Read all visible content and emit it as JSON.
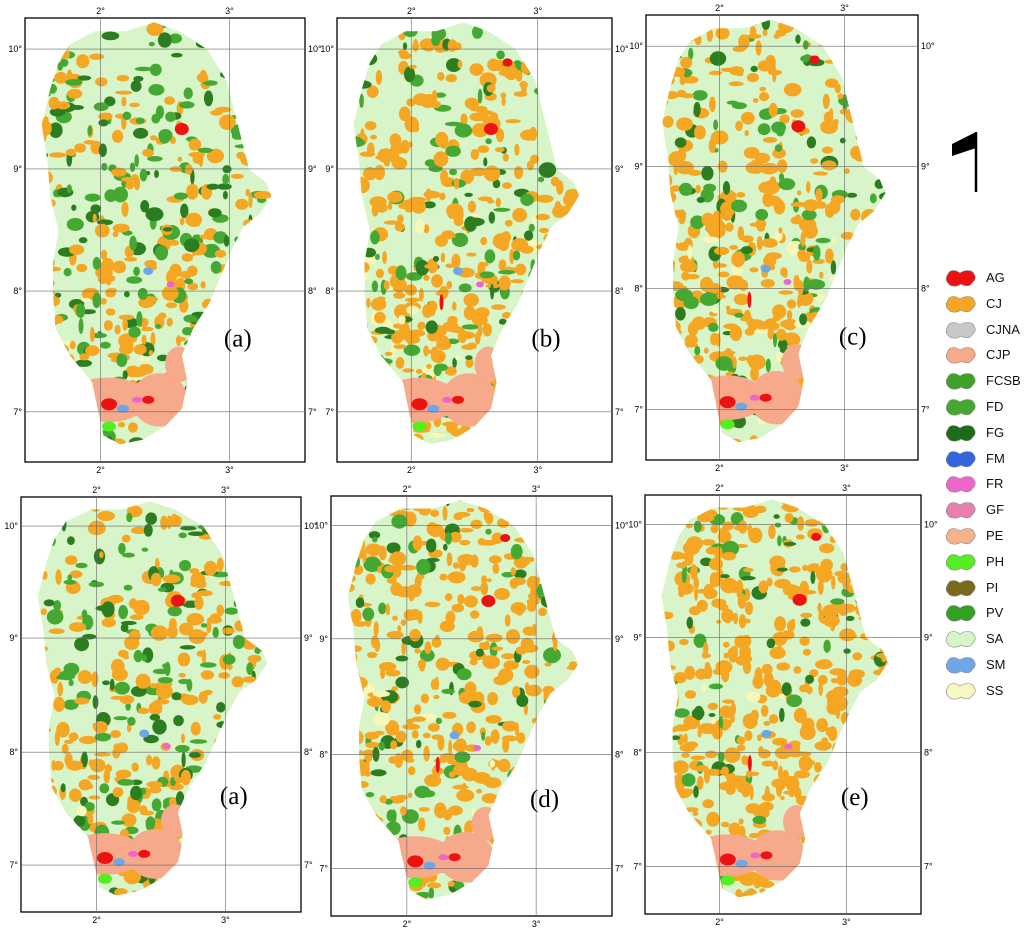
{
  "panels": [
    {
      "id": "top-1",
      "label": "(a)",
      "lat_ticks": [
        "10°",
        "9°",
        "8°",
        "7°"
      ],
      "lon_ticks": [
        "2°",
        "3°"
      ]
    },
    {
      "id": "top-2",
      "label": "(b)",
      "lat_ticks": [
        "10°",
        "9°",
        "8°",
        "7°"
      ],
      "lon_ticks": [
        "2°",
        "3°"
      ]
    },
    {
      "id": "top-3",
      "label": "(c)",
      "lat_ticks": [
        "10°",
        "9°",
        "8°",
        "7°"
      ],
      "lon_ticks": [
        "2°",
        "3°"
      ]
    },
    {
      "id": "bottom-1",
      "label": "(a)",
      "lat_ticks": [
        "10°",
        "9°",
        "8°",
        "7°"
      ],
      "lon_ticks": [
        "2°",
        "3°"
      ]
    },
    {
      "id": "bottom-2",
      "label": "(d)",
      "lat_ticks": [
        "10°",
        "9°",
        "8°",
        "7°"
      ],
      "lon_ticks": [
        "2°",
        "3°"
      ]
    },
    {
      "id": "bottom-3",
      "label": "(e)",
      "lat_ticks": [
        "10°",
        "9°",
        "8°",
        "7°"
      ],
      "lon_ticks": [
        "2°",
        "3°"
      ]
    }
  ],
  "legend": {
    "items": [
      {
        "code": "AG",
        "color": "#ee1111"
      },
      {
        "code": "CJ",
        "color": "#f5a623"
      },
      {
        "code": "CJNA",
        "color": "#c8c8c8"
      },
      {
        "code": "CJP",
        "color": "#f7a98c"
      },
      {
        "code": "FCSB",
        "color": "#3fa02a"
      },
      {
        "code": "FD",
        "color": "#44a832"
      },
      {
        "code": "FG",
        "color": "#1e6b18"
      },
      {
        "code": "FM",
        "color": "#3366dd"
      },
      {
        "code": "FR",
        "color": "#ee66cc"
      },
      {
        "code": "GF",
        "color": "#e87fb0"
      },
      {
        "code": "PE",
        "color": "#f6b28a"
      },
      {
        "code": "PH",
        "color": "#55ee22"
      },
      {
        "code": "PI",
        "color": "#7a6a1e"
      },
      {
        "code": "PV",
        "color": "#33a022"
      },
      {
        "code": "SA",
        "color": "#d7f5c8"
      },
      {
        "code": "SM",
        "color": "#6ea6e6"
      },
      {
        "code": "SS",
        "color": "#f5f8c0"
      }
    ]
  },
  "colors": {
    "sa": "#d7f5c8",
    "cj": "#f5a623",
    "fd": "#44a832",
    "fg": "#2b7d1f",
    "ss": "#f7f7b8",
    "ag": "#ee1111",
    "cjp": "#f7a98c",
    "fm": "#6ea6e6",
    "fr": "#ee66cc",
    "ph": "#55ee22"
  }
}
